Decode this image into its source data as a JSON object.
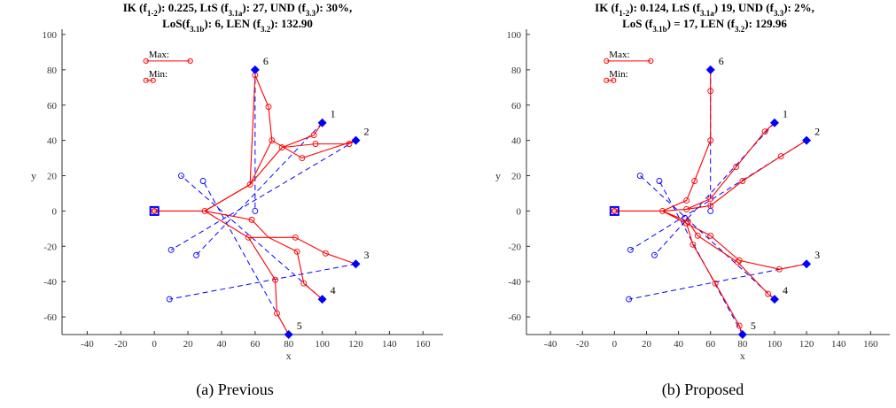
{
  "panels": [
    {
      "title_parts": [
        [
          {
            "t": "IK (f"
          },
          {
            "t": "1-2",
            "sub": true
          },
          {
            "t": "): 0.225, LtS (f"
          },
          {
            "t": "3.1a",
            "sub": true
          },
          {
            "t": "): 27, UND (f"
          },
          {
            "t": "3.3",
            "sub": true
          },
          {
            "t": "): 30%,"
          }
        ],
        [
          {
            "t": "LoS(f"
          },
          {
            "t": "3.1b",
            "sub": true
          },
          {
            "t": "): 6, LEN (f"
          },
          {
            "t": "3.2",
            "sub": true
          },
          {
            "t": "): 132.90"
          }
        ]
      ],
      "caption": "(a) Previous"
    },
    {
      "title_parts": [
        [
          {
            "t": "IK (f"
          },
          {
            "t": "1-2",
            "sub": true
          },
          {
            "t": "): 0.124, LtS (f"
          },
          {
            "t": "3.1a",
            "sub": true
          },
          {
            "t": ") 19, UND (f"
          },
          {
            "t": "3.3",
            "sub": true
          },
          {
            "t": "): 2%,"
          }
        ],
        [
          {
            "t": "LoS (f"
          },
          {
            "t": "3.1b",
            "sub": true
          },
          {
            "t": ") = 17, LEN (f"
          },
          {
            "t": "3.2",
            "sub": true
          },
          {
            "t": "): 129.96"
          }
        ]
      ],
      "caption": "(b) Proposed"
    }
  ],
  "chart_data": [
    {
      "type": "scatter",
      "xlabel": "x",
      "ylabel": "y",
      "xlim": [
        -55,
        172
      ],
      "ylim": [
        -70,
        103
      ],
      "xticks": [
        -40,
        -20,
        0,
        20,
        40,
        60,
        80,
        100,
        120,
        140,
        160
      ],
      "yticks": [
        -60,
        -40,
        -20,
        0,
        20,
        40,
        60,
        80,
        100
      ],
      "legend": {
        "max_label": "Max",
        "min_label": "Min",
        "position": "top-left"
      },
      "colors": {
        "path": "#ff0000",
        "target": "#0000ff"
      },
      "base": [
        0,
        0
      ],
      "targets": [
        {
          "id": "1",
          "x": 100,
          "y": 50
        },
        {
          "id": "2",
          "x": 120,
          "y": 40
        },
        {
          "id": "3",
          "x": 120,
          "y": -30
        },
        {
          "id": "4",
          "x": 100,
          "y": -50
        },
        {
          "id": "5",
          "x": 80,
          "y": -70
        },
        {
          "id": "6",
          "x": 60,
          "y": 80
        }
      ],
      "path_lines": [
        [
          [
            0,
            0
          ],
          [
            30,
            0
          ],
          [
            57,
            15
          ],
          [
            70,
            40
          ],
          [
            88,
            30
          ],
          [
            120,
            40
          ]
        ],
        [
          [
            30,
            0
          ],
          [
            57,
            15
          ],
          [
            60,
            77
          ],
          [
            68,
            59
          ],
          [
            70,
            40
          ]
        ],
        [
          [
            57,
            15
          ],
          [
            76,
            36
          ],
          [
            95,
            43
          ],
          [
            100,
            50
          ]
        ],
        [
          [
            76,
            36
          ],
          [
            96,
            38
          ],
          [
            116,
            38
          ],
          [
            120,
            40
          ]
        ],
        [
          [
            30,
            0
          ],
          [
            58,
            -5
          ],
          [
            68,
            -15
          ],
          [
            85,
            -23
          ],
          [
            89,
            -41
          ],
          [
            100,
            -50
          ]
        ],
        [
          [
            30,
            0
          ],
          [
            56,
            -15
          ],
          [
            84,
            -15
          ],
          [
            102,
            -24
          ],
          [
            120,
            -30
          ]
        ],
        [
          [
            56,
            -15
          ],
          [
            72,
            -39
          ],
          [
            73,
            -58
          ],
          [
            80,
            -70
          ]
        ]
      ],
      "dashed_lines": [
        [
          [
            60,
            80
          ],
          [
            60,
            0
          ]
        ],
        [
          [
            100,
            50
          ],
          [
            25,
            -25
          ]
        ],
        [
          [
            120,
            40
          ],
          [
            10,
            -22
          ]
        ],
        [
          [
            120,
            -30
          ],
          [
            9,
            -50
          ]
        ],
        [
          [
            100,
            -50
          ],
          [
            16,
            20
          ]
        ],
        [
          [
            80,
            -70
          ],
          [
            29,
            17
          ]
        ]
      ],
      "path_markers": [
        [
          0,
          0
        ],
        [
          30,
          0
        ],
        [
          57,
          15
        ],
        [
          60,
          77
        ],
        [
          68,
          59
        ],
        [
          70,
          40
        ],
        [
          76,
          36
        ],
        [
          88,
          30
        ],
        [
          95,
          43
        ],
        [
          96,
          38
        ],
        [
          116,
          38
        ],
        [
          58,
          -5
        ],
        [
          56,
          -15
        ],
        [
          84,
          -15
        ],
        [
          85,
          -23
        ],
        [
          89,
          -41
        ],
        [
          102,
          -24
        ],
        [
          72,
          -39
        ],
        [
          73,
          -58
        ]
      ],
      "blue_markers": [
        [
          60,
          0
        ],
        [
          25,
          -25
        ],
        [
          10,
          -22
        ],
        [
          9,
          -50
        ],
        [
          16,
          20
        ],
        [
          29,
          17
        ]
      ]
    },
    {
      "type": "scatter",
      "xlabel": "x",
      "ylabel": "y",
      "xlim": [
        -55,
        172
      ],
      "ylim": [
        -70,
        103
      ],
      "xticks": [
        -40,
        -20,
        0,
        20,
        40,
        60,
        80,
        100,
        120,
        140,
        160
      ],
      "yticks": [
        -60,
        -40,
        -20,
        0,
        20,
        40,
        60,
        80,
        100
      ],
      "legend": {
        "max_label": "Max",
        "min_label": "Min",
        "position": "top-left"
      },
      "colors": {
        "path": "#ff0000",
        "target": "#0000ff"
      },
      "base": [
        0,
        0
      ],
      "targets": [
        {
          "id": "1",
          "x": 100,
          "y": 50
        },
        {
          "id": "2",
          "x": 120,
          "y": 40
        },
        {
          "id": "3",
          "x": 120,
          "y": -30
        },
        {
          "id": "4",
          "x": 100,
          "y": -50
        },
        {
          "id": "5",
          "x": 80,
          "y": -70
        },
        {
          "id": "6",
          "x": 60,
          "y": 80
        }
      ],
      "path_lines": [
        [
          [
            0,
            0
          ],
          [
            30,
            0
          ],
          [
            45,
            -7
          ],
          [
            60,
            -14
          ],
          [
            78,
            -28
          ],
          [
            103,
            -33
          ],
          [
            120,
            -30
          ]
        ],
        [
          [
            30,
            0
          ],
          [
            45,
            -7
          ],
          [
            49,
            -19
          ],
          [
            63,
            -41
          ],
          [
            78,
            -65
          ],
          [
            80,
            -70
          ]
        ],
        [
          [
            30,
            0
          ],
          [
            46,
            -6
          ],
          [
            52,
            -14
          ],
          [
            77,
            -29
          ],
          [
            96,
            -47
          ],
          [
            100,
            -50
          ]
        ],
        [
          [
            30,
            0
          ],
          [
            45,
            1
          ],
          [
            60,
            7
          ],
          [
            76,
            25
          ],
          [
            94,
            45
          ],
          [
            100,
            50
          ]
        ],
        [
          [
            45,
            1
          ],
          [
            60,
            3
          ],
          [
            80,
            17
          ],
          [
            104,
            31
          ],
          [
            120,
            40
          ]
        ],
        [
          [
            30,
            0
          ],
          [
            45,
            6
          ],
          [
            50,
            17
          ],
          [
            60,
            40
          ],
          [
            60,
            68
          ],
          [
            60,
            80
          ]
        ]
      ],
      "dashed_lines": [
        [
          [
            60,
            80
          ],
          [
            60,
            0
          ]
        ],
        [
          [
            100,
            50
          ],
          [
            25,
            -25
          ]
        ],
        [
          [
            120,
            40
          ],
          [
            10,
            -22
          ]
        ],
        [
          [
            120,
            -30
          ],
          [
            9,
            -50
          ]
        ],
        [
          [
            100,
            -50
          ],
          [
            16,
            20
          ]
        ],
        [
          [
            80,
            -70
          ],
          [
            28,
            17
          ]
        ]
      ],
      "path_markers": [
        [
          0,
          0
        ],
        [
          30,
          0
        ],
        [
          45,
          -7
        ],
        [
          60,
          -14
        ],
        [
          78,
          -28
        ],
        [
          103,
          -33
        ],
        [
          49,
          -19
        ],
        [
          63,
          -41
        ],
        [
          78,
          -65
        ],
        [
          46,
          -6
        ],
        [
          52,
          -14
        ],
        [
          77,
          -29
        ],
        [
          96,
          -47
        ],
        [
          45,
          1
        ],
        [
          60,
          7
        ],
        [
          76,
          25
        ],
        [
          94,
          45
        ],
        [
          60,
          3
        ],
        [
          80,
          17
        ],
        [
          104,
          31
        ],
        [
          45,
          6
        ],
        [
          50,
          17
        ],
        [
          60,
          40
        ],
        [
          60,
          68
        ]
      ],
      "blue_markers": [
        [
          60,
          0
        ],
        [
          25,
          -25
        ],
        [
          10,
          -22
        ],
        [
          9,
          -50
        ],
        [
          16,
          20
        ],
        [
          28,
          17
        ],
        [
          44,
          -4
        ]
      ]
    }
  ]
}
